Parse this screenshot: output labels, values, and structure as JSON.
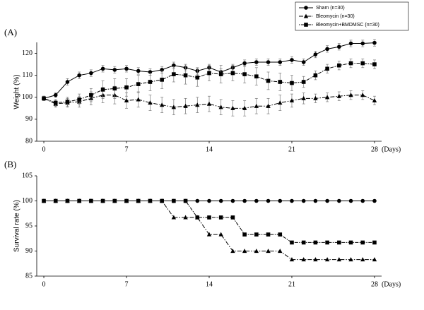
{
  "chart_data": [
    {
      "type": "line",
      "panel_label": "(A)",
      "y_label": "Weight (%)",
      "x_label": "(Days)",
      "x": [
        0,
        1,
        2,
        3,
        4,
        5,
        6,
        7,
        8,
        9,
        10,
        11,
        12,
        13,
        14,
        15,
        16,
        17,
        18,
        19,
        20,
        21,
        22,
        23,
        24,
        25,
        26,
        27,
        28
      ],
      "xlim": [
        -0.6,
        28.6
      ],
      "xticks": [
        0,
        7,
        14,
        21,
        28
      ],
      "ylim": [
        80,
        125
      ],
      "yticks": [
        80,
        90,
        100,
        110,
        120
      ],
      "legend": "upper right",
      "series": [
        {
          "name": "Sham (n=30)",
          "color": "#000000",
          "marker": "circle",
          "line_style": "solid",
          "values": [
            99.5,
            101,
            107,
            110,
            111,
            113,
            112.5,
            113,
            112,
            111.5,
            112.5,
            114.5,
            113.5,
            112,
            113.5,
            111.5,
            113.5,
            115.5,
            116,
            116,
            116,
            117,
            116,
            119.5,
            122,
            123,
            124.5,
            124.5,
            124.8
          ],
          "errors": [
            1,
            1,
            1.5,
            1.5,
            1.5,
            1.5,
            1.5,
            1.5,
            1.5,
            1.5,
            1.5,
            1.5,
            1.5,
            1.5,
            1.5,
            1.5,
            1.5,
            1.5,
            1.5,
            1.5,
            1.5,
            1.5,
            1.5,
            1.5,
            1.5,
            1.5,
            1.5,
            1.5,
            1.5
          ]
        },
        {
          "name": "Bleomycin (n=30)",
          "color": "#000000",
          "marker": "triangle",
          "line_style": "dashdot",
          "values": [
            99.5,
            97,
            97.5,
            98,
            99.5,
            101,
            101,
            98.5,
            99,
            97.5,
            96.5,
            95.5,
            96,
            96.5,
            97,
            95.5,
            95,
            95,
            96,
            96,
            97.5,
            98.5,
            99.5,
            99.5,
            100,
            100.5,
            101,
            101,
            98.5
          ],
          "errors": [
            1,
            1.5,
            2,
            2.5,
            3,
            3.5,
            4,
            3.5,
            3.5,
            3.5,
            3.5,
            3.5,
            3.5,
            3.5,
            3.5,
            3.5,
            3.5,
            3.5,
            3.5,
            3.5,
            3.5,
            3,
            2.5,
            2,
            2,
            2,
            2,
            2,
            2
          ]
        },
        {
          "name": "Bleomycin+BMDMSC (n=30)",
          "color": "#000000",
          "marker": "square",
          "line_style": "dotted",
          "values": [
            99.5,
            97.5,
            98,
            99,
            101,
            103.5,
            104,
            104.5,
            106,
            107,
            108,
            110.5,
            110,
            109,
            111,
            110.5,
            111,
            110.5,
            109.5,
            107.5,
            107,
            106.5,
            107,
            110,
            113,
            114.5,
            115.5,
            115.5,
            115
          ],
          "errors": [
            1,
            1.5,
            2,
            2.5,
            3,
            4,
            4.5,
            4,
            4,
            4,
            4,
            3.5,
            4,
            4,
            3.5,
            4,
            3.5,
            4,
            4,
            4,
            4,
            3.5,
            2.5,
            2,
            2,
            2,
            2,
            2,
            2
          ]
        }
      ]
    },
    {
      "type": "line",
      "panel_label": "(B)",
      "y_label": "Survival rate (%)",
      "x_label": "(Days)",
      "x": [
        0,
        1,
        2,
        3,
        4,
        5,
        6,
        7,
        8,
        9,
        10,
        11,
        12,
        13,
        14,
        15,
        16,
        17,
        18,
        19,
        20,
        21,
        22,
        23,
        24,
        25,
        26,
        27,
        28
      ],
      "xlim": [
        -0.6,
        28.6
      ],
      "xticks": [
        0,
        7,
        14,
        21,
        28
      ],
      "ylim": [
        85,
        105
      ],
      "yticks": [
        85,
        90,
        95,
        100,
        105
      ],
      "series": [
        {
          "color": "#000000",
          "marker": "circle",
          "line_style": "solid",
          "values": [
            100,
            100,
            100,
            100,
            100,
            100,
            100,
            100,
            100,
            100,
            100,
            100,
            100,
            100,
            100,
            100,
            100,
            100,
            100,
            100,
            100,
            100,
            100,
            100,
            100,
            100,
            100,
            100,
            100
          ]
        },
        {
          "color": "#000000",
          "marker": "triangle",
          "line_style": "dashdot",
          "values": [
            100,
            100,
            100,
            100,
            100,
            100,
            100,
            100,
            100,
            100,
            100,
            96.7,
            96.7,
            96.7,
            93.3,
            93.3,
            90,
            90,
            90,
            90,
            90,
            88.3,
            88.3,
            88.3,
            88.3,
            88.3,
            88.3,
            88.3,
            88.3
          ]
        },
        {
          "color": "#000000",
          "marker": "square",
          "line_style": "dotted",
          "values": [
            100,
            100,
            100,
            100,
            100,
            100,
            100,
            100,
            100,
            100,
            100,
            100,
            100,
            96.7,
            96.7,
            96.7,
            96.7,
            93.3,
            93.3,
            93.3,
            93.3,
            91.7,
            91.7,
            91.7,
            91.7,
            91.7,
            91.7,
            91.7,
            91.7
          ]
        }
      ]
    }
  ]
}
